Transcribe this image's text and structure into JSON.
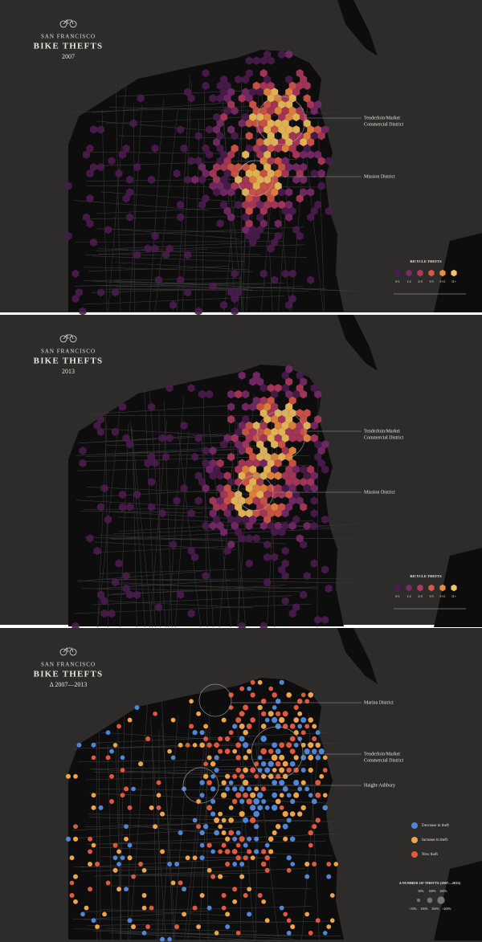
{
  "panels": [
    {
      "header": {
        "kicker": "SAN FRANCISCO",
        "title": "BIKE THEFTS",
        "subtitle": "2007"
      },
      "annotations": [
        {
          "lines": [
            "Tenderloin/Market",
            "Commercial District"
          ]
        },
        {
          "lines": [
            "Mission District"
          ]
        }
      ],
      "legend": {
        "title": "BICYCLE THEFTS",
        "labels": [
          "0-1",
          "1-2",
          "2-3",
          "3-5",
          "5-11",
          "11+"
        ],
        "colors": [
          "#4b1c4e",
          "#7a2a6a",
          "#b03a5e",
          "#d9584a",
          "#ee8c3e",
          "#f6c35c"
        ]
      }
    },
    {
      "header": {
        "kicker": "SAN FRANCISCO",
        "title": "BIKE THEFTS",
        "subtitle": "2013"
      },
      "annotations": [
        {
          "lines": [
            "Tenderloin/Market",
            "Commercial District"
          ]
        },
        {
          "lines": [
            "Mission District"
          ]
        }
      ],
      "legend": {
        "title": "BICYCLE THEFTS",
        "labels": [
          "0-1",
          "1-2",
          "2-3",
          "3-5",
          "5-11",
          "11+"
        ],
        "colors": [
          "#4b1c4e",
          "#7a2a6a",
          "#b03a5e",
          "#d9584a",
          "#ee8c3e",
          "#f6c35c"
        ]
      }
    },
    {
      "header": {
        "kicker": "SAN FRANCISCO",
        "title": "BIKE THEFTS",
        "subtitle": "Δ 2007—2013"
      },
      "annotations": [
        {
          "lines": [
            "Marina District"
          ]
        },
        {
          "lines": [
            "Tenderloin/Market",
            "Commercial District"
          ]
        },
        {
          "lines": [
            "Haight-Ashbury"
          ]
        }
      ],
      "legend": {
        "items": [
          {
            "label": "Decrease in theft",
            "color": "#4f86d8"
          },
          {
            "label": "Increase in theft",
            "color": "#f0a448"
          },
          {
            "label": "New theft",
            "color": "#e2583e"
          }
        ],
        "size_title": "Δ NUMBER OF THEFTS (2007—2013)",
        "size_labels": [
          "50%",
          "100%",
          "200%",
          "<50%",
          "100%",
          "300%",
          ">400%"
        ]
      }
    }
  ]
}
